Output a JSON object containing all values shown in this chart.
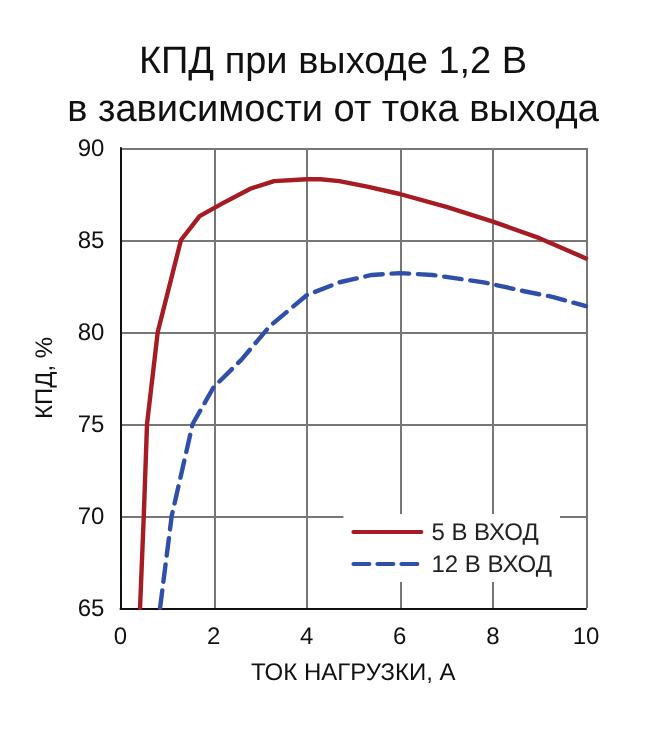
{
  "chart_data": {
    "type": "line",
    "title": "КПД при выходе 1,2 В\nв зависимости от тока выхода",
    "xlabel": "ТОК НАГРУЗКИ, А",
    "ylabel": "КПД, %",
    "xlim": [
      0,
      10
    ],
    "xticks": [
      0,
      2,
      4,
      6,
      8,
      10
    ],
    "ylim": [
      65,
      90
    ],
    "yticks": [
      65,
      70,
      75,
      80,
      85,
      90
    ],
    "grid": true,
    "legend": "bottom right",
    "marker": "none",
    "series": [
      {
        "name": "5 В ВХОД",
        "color": "#a51c24",
        "line_style": "solid",
        "x": [
          0.42,
          0.5,
          0.57,
          0.8,
          1.3,
          1.7,
          2.2,
          2.8,
          3.3,
          4.0,
          4.3,
          4.7,
          5.3,
          6.0,
          7.0,
          8.0,
          9.0,
          10.0
        ],
        "values": [
          65,
          70,
          75,
          80,
          85,
          86.3,
          87,
          87.8,
          88.2,
          88.3,
          88.3,
          88.2,
          87.9,
          87.5,
          86.8,
          86.0,
          85.1,
          84.0
        ]
      },
      {
        "name": "12 В ВХОД",
        "color": "#2f4fa8",
        "line_style": "dashed",
        "x": [
          0.85,
          1.1,
          1.55,
          2.0,
          2.6,
          3.2,
          4.0,
          4.7,
          5.4,
          6.0,
          6.7,
          7.8,
          8.7,
          9.3,
          10.0
        ],
        "values": [
          65,
          70,
          75,
          77,
          78.5,
          80.3,
          82.0,
          82.7,
          83.1,
          83.2,
          83.1,
          82.7,
          82.2,
          81.9,
          81.4
        ]
      }
    ]
  }
}
